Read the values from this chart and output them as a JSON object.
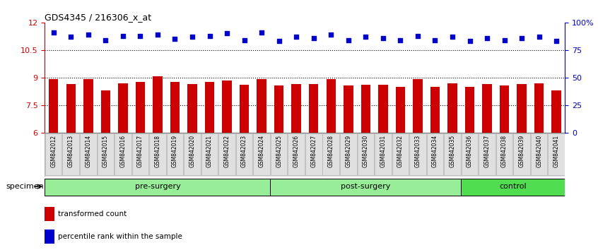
{
  "title": "GDS4345 / 216306_x_at",
  "samples": [
    "GSM842012",
    "GSM842013",
    "GSM842014",
    "GSM842015",
    "GSM842016",
    "GSM842017",
    "GSM842018",
    "GSM842019",
    "GSM842020",
    "GSM842021",
    "GSM842022",
    "GSM842023",
    "GSM842024",
    "GSM842025",
    "GSM842026",
    "GSM842027",
    "GSM842028",
    "GSM842029",
    "GSM842030",
    "GSM842031",
    "GSM842032",
    "GSM842033",
    "GSM842034",
    "GSM842035",
    "GSM842036",
    "GSM842037",
    "GSM842038",
    "GSM842039",
    "GSM842040",
    "GSM842041"
  ],
  "bar_values": [
    8.9,
    8.65,
    8.9,
    8.3,
    8.7,
    8.75,
    9.05,
    8.75,
    8.65,
    8.75,
    8.85,
    8.6,
    8.9,
    8.55,
    8.65,
    8.65,
    8.9,
    8.55,
    8.6,
    8.6,
    8.5,
    8.9,
    8.5,
    8.7,
    8.5,
    8.65,
    8.55,
    8.65,
    8.7,
    8.3
  ],
  "percentile_values": [
    91,
    87,
    89,
    84,
    88,
    88,
    89,
    85,
    87,
    88,
    90,
    84,
    91,
    83,
    87,
    86,
    89,
    84,
    87,
    86,
    84,
    88,
    84,
    87,
    83,
    86,
    84,
    86,
    87,
    83
  ],
  "groups": [
    {
      "label": "pre-surgery",
      "start": 0,
      "end": 13,
      "color": "#98EE98"
    },
    {
      "label": "post-surgery",
      "start": 13,
      "end": 24,
      "color": "#98EE98"
    },
    {
      "label": "control",
      "start": 24,
      "end": 30,
      "color": "#50DD50"
    }
  ],
  "bar_color": "#CC0000",
  "dot_color": "#0000CC",
  "ylim_left": [
    6,
    12
  ],
  "ylim_right": [
    0,
    100
  ],
  "yticks_left": [
    6,
    7.5,
    9,
    10.5,
    12
  ],
  "yticks_right": [
    0,
    25,
    50,
    75,
    100
  ],
  "hlines": [
    7.5,
    9.0,
    10.5
  ],
  "bar_bottom": 6,
  "specimen_label": "specimen",
  "legend_items": [
    {
      "color": "#CC0000",
      "label": "transformed count"
    },
    {
      "color": "#0000CC",
      "label": "percentile rank within the sample"
    }
  ]
}
